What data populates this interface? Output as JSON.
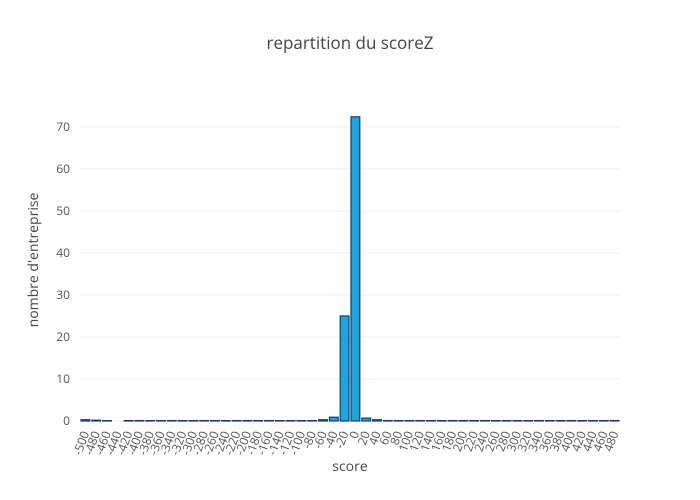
{
  "chart_data": {
    "type": "histogram",
    "title": "repartition du scoreZ",
    "x_label": "score",
    "y_label": "nombre d'entreprise",
    "bins": [
      -510,
      -490,
      -470,
      -450,
      -430,
      -410,
      -390,
      -370,
      -350,
      -330,
      -310,
      -290,
      -270,
      -250,
      -230,
      -210,
      -190,
      -170,
      -150,
      -130,
      -110,
      -90,
      -70,
      -50,
      -30,
      -10,
      10,
      30,
      50,
      70,
      90,
      110,
      130,
      150,
      170,
      190,
      210,
      230,
      250,
      270,
      290,
      310,
      330,
      350,
      370,
      390,
      410,
      430,
      450,
      470,
      490
    ],
    "values": [
      0.3,
      0.2,
      0.1,
      0,
      0.1,
      0.1,
      0.1,
      0.1,
      0.1,
      0.1,
      0.1,
      0.1,
      0.1,
      0.1,
      0.1,
      0.1,
      0.1,
      0.1,
      0.1,
      0.1,
      0.1,
      0.1,
      0.3,
      0.9,
      25,
      72.4,
      0.7,
      0.3,
      0.1,
      0.1,
      0.1,
      0.1,
      0.1,
      0.1,
      0.1,
      0.1,
      0.1,
      0.1,
      0.1,
      0.1,
      0.1,
      0.1,
      0.1,
      0.1,
      0.1,
      0.1,
      0.1,
      0.1,
      0.1,
      0.1
    ],
    "color": "#1aa7e0",
    "edge_color": "#1c3a6e",
    "xlim": [
      -510,
      490
    ],
    "xticks": [
      -500,
      -480,
      -460,
      -440,
      -420,
      -400,
      -380,
      -360,
      -340,
      -320,
      -300,
      -280,
      -260,
      -240,
      -220,
      -200,
      -180,
      -160,
      -140,
      -120,
      -100,
      -80,
      -60,
      -40,
      -20,
      0,
      20,
      40,
      60,
      80,
      100,
      120,
      140,
      160,
      180,
      200,
      220,
      240,
      260,
      280,
      300,
      320,
      340,
      360,
      380,
      400,
      420,
      440,
      460,
      480
    ],
    "ylim": [
      0,
      76.4
    ],
    "yticks": [
      0,
      10,
      20,
      30,
      40,
      50,
      60,
      70
    ],
    "grid": true
  }
}
